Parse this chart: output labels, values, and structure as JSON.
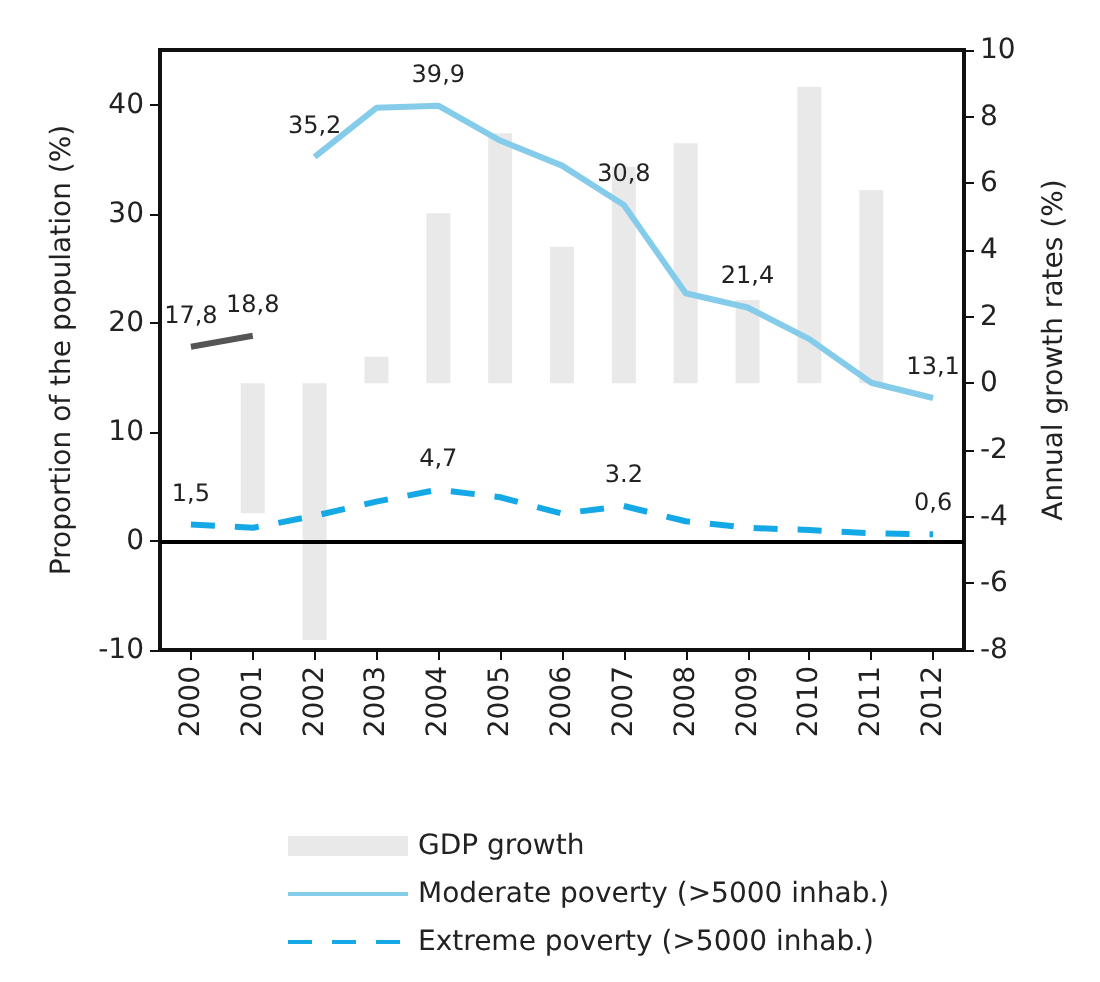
{
  "chart_data": {
    "type": "line",
    "ylabel": "Proportion of the population (%)",
    "y2label": "Annual growth rates (%)",
    "categories": [
      "2000",
      "2001",
      "2002",
      "2003",
      "2004",
      "2005",
      "2006",
      "2007",
      "2008",
      "2009",
      "2010",
      "2011",
      "2012"
    ],
    "series": [
      {
        "name": "GDP growth",
        "type": "bar",
        "axis": "y2",
        "color": "#e8e9e8",
        "values": [
          null,
          -3.9,
          -7.7,
          0.8,
          5.1,
          7.5,
          4.1,
          6.5,
          7.2,
          2.5,
          8.9,
          5.8,
          null
        ]
      },
      {
        "color": "#555555",
        "line_style": "solid",
        "values": [
          17.8,
          18.8,
          null,
          null,
          null,
          null,
          null,
          null,
          null,
          null,
          null,
          null,
          null
        ],
        "value_labels": [
          "17,8",
          "18,8",
          null,
          null,
          null,
          null,
          null,
          null,
          null,
          null,
          null,
          null,
          null
        ]
      },
      {
        "name": "Moderate poverty (>5000 inhab.)",
        "color": "#85cbea",
        "line_style": "solid",
        "values": [
          null,
          null,
          35.2,
          39.7,
          39.9,
          36.7,
          34.4,
          30.8,
          22.7,
          21.4,
          18.5,
          14.5,
          13.1
        ],
        "value_labels": [
          null,
          null,
          "35,2",
          null,
          "39,9",
          null,
          null,
          "30,8",
          null,
          "21,4",
          null,
          null,
          "13,1"
        ]
      },
      {
        "name": "Extreme poverty (>5000 inhab.)",
        "color": "#14a9e6",
        "line_style": "dashed",
        "values": [
          1.5,
          1.2,
          2.3,
          3.6,
          4.7,
          4.0,
          2.5,
          3.2,
          1.8,
          1.2,
          1.0,
          0.7,
          0.6
        ],
        "value_labels": [
          "1,5",
          null,
          null,
          null,
          "4,7",
          null,
          null,
          "3.2",
          null,
          null,
          null,
          null,
          "0,6"
        ]
      }
    ],
    "ylim": [
      -10,
      45
    ],
    "yticks": [
      -10,
      0,
      10,
      20,
      30,
      40
    ],
    "y2lim": [
      -8,
      10
    ],
    "y2ticks": [
      -8,
      -6,
      -4,
      -2,
      0,
      2,
      4,
      6,
      8,
      10
    ],
    "ref_lines": [
      {
        "axis": "y",
        "value": 0,
        "color": "#000000"
      }
    ],
    "grid": false,
    "legend": "bottom",
    "marker": "none"
  }
}
